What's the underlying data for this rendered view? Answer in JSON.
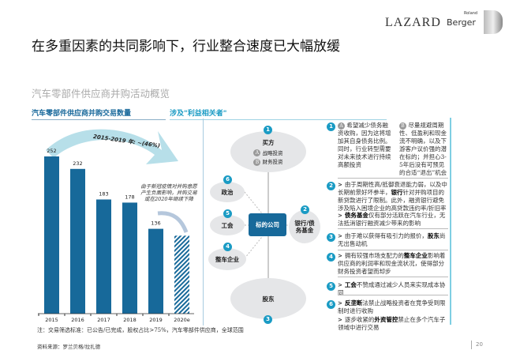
{
  "header": {
    "title": "在多重因素的共同影响下，行业整合速度已大幅放缓",
    "logo_lazard": "LAZARD",
    "logo_roland": "Roland",
    "logo_berger": "Berger"
  },
  "subtitle": "汽车零部件供应商并购活动概览",
  "left_section": {
    "heading": "汽车零部件供应商并购交易数量",
    "trend_label": "2015-2019 年: ~(46%)",
    "annotation": "由于新冠疫情对并购意愿产生负面影响，并购交易或在2020年继续下降"
  },
  "chart_data": {
    "type": "bar",
    "title": "汽车零部件供应商并购交易数量",
    "categories": [
      "2015",
      "2016",
      "2017",
      "2018",
      "2019",
      "2020e"
    ],
    "values": [
      252,
      232,
      183,
      178,
      136,
      125
    ],
    "labels": [
      "252",
      "232",
      "183",
      "178",
      "136",
      ""
    ],
    "estimate_category": "2020e",
    "ylim": [
      0,
      260
    ],
    "bar_color": "#17699a"
  },
  "note": "注：交易筛选标准：已公告/已完成，股权占比>75%，汽车零部件供应商，全球范围",
  "source": "资料来源：罗兰贝格/拉扎德",
  "right_section": {
    "heading": "涉及\"利益相关者\"",
    "diagram": {
      "center": "标的公司",
      "buyer": "买方",
      "buyer_a": "战略投资",
      "buyer_b": "财务投资",
      "bank": "银行/债务基金",
      "shareholders": "股东",
      "oem": "整车企业",
      "union": "工会",
      "politics": "政治",
      "nums": [
        "1",
        "2",
        "3",
        "4",
        "5",
        "6"
      ]
    },
    "points": {
      "p1a": "希望减少债务融资收购，因为这将增加其自身债务比例。同时，行业转型需要对未来技术进行持续高额投资",
      "p1b": "尽量规避周期性、低盈利和现金流不明确，以及下游客户议价强的潜在标的；并担心3-5年后没有可预见的合适“退出”机会",
      "p2a_pre": "由于周期性高/抵御衰退能力弱，以及中长期前景好坏参半，",
      "p2a_bold": "银行",
      "p2a_post": "针对并购项目的新贷款进行了限制。此外，融资银行避免涉及陷入困境企业的高贷款违约率/折旧率",
      "p2b_bold": "债务基金",
      "p2b_post": "仅有部分活跃在汽车行业，无法抵消银行融资减少带来的影响",
      "p3_pre": "由于难以获得有吸引力的报价，",
      "p3_bold": "股东",
      "p3_post": "尚无出售动机",
      "p4_pre": "拥有较强市场支配力的",
      "p4_bold": "整车企业",
      "p4_post": "影响着供应商的利润率和现金流状况，使得部分财务投资者望而却步",
      "p5_bold": "工会",
      "p5_post": "不赞成通过减少人员来实现成本协同",
      "p6a_bold": "反垄断",
      "p6a_post": "法禁止战略投资者在竞争受到限制时进行收购",
      "p6b_pre": "逐步收紧的",
      "p6b_bold": "外资管控",
      "p6b_post": "禁止在多个汽车子领域中进行交易"
    }
  },
  "page_number": "20",
  "colors": {
    "bar": "#17699a",
    "accent": "#1a9bc4",
    "arrow": "#b7dfe9"
  }
}
